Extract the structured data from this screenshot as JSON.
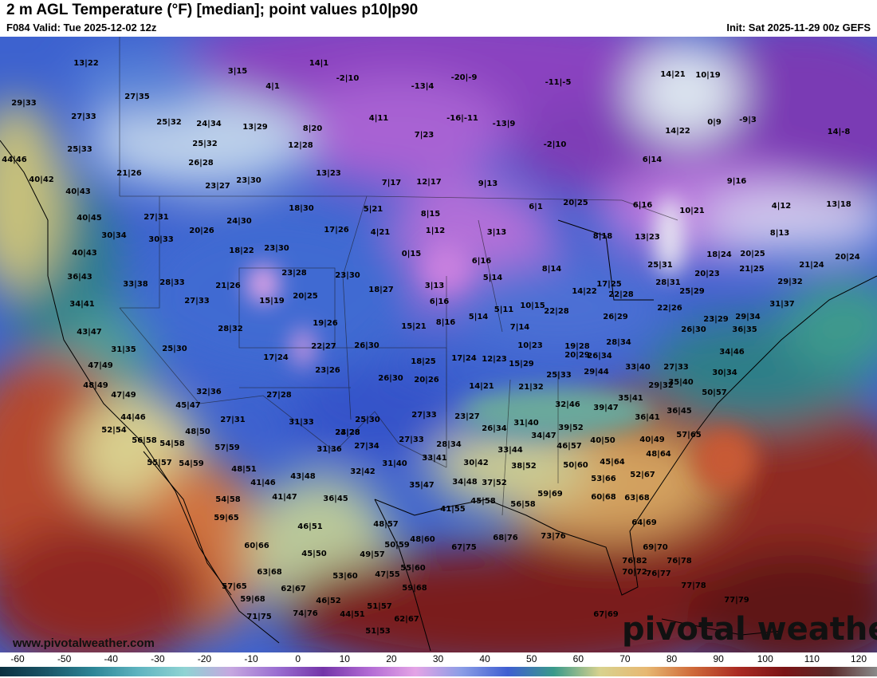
{
  "header": {
    "title": "2 m AGL Temperature (°F) [median]; point values p10|p90",
    "valid": "F084 Valid: Tue 2025-12-02 12z",
    "init": "Init: Sat 2025-11-29 00z GEFS"
  },
  "watermark": "www.pivotalweather.com",
  "brand": "pivotal weather",
  "colorbar": {
    "ticks": [
      "-60",
      "-50",
      "-40",
      "-30",
      "-20",
      "-10",
      "0",
      "10",
      "20",
      "30",
      "40",
      "50",
      "60",
      "70",
      "80",
      "90",
      "100",
      "110",
      "120"
    ],
    "colors": [
      "#0b3040",
      "#1a5567",
      "#2c8596",
      "#5fb4c0",
      "#8fd3d3",
      "#c6a7e0",
      "#9a6ed1",
      "#7434a8",
      "#b26bd4",
      "#e4a4e6",
      "#8b9de6",
      "#3f5ed1",
      "#3a9a8a",
      "#d8d28e",
      "#e7b872",
      "#cf6a3a",
      "#a92a22",
      "#7a1416",
      "#5a2a2a",
      "#8a8a8a"
    ]
  },
  "point_values": [
    "13|22",
    "3|15",
    "14|1",
    "-2|10",
    "4|1",
    "-13|4",
    "-20|-9",
    "-11|-5",
    "14|21",
    "10|19",
    "29|33",
    "27|35",
    "27|33",
    "25|32",
    "24|34",
    "13|29",
    "8|20",
    "4|11",
    "-16|-11",
    "-13|9",
    "0|9",
    "-9|3",
    "25|33",
    "25|32",
    "12|28",
    "7|23",
    "-2|10",
    "14|22",
    "14|-8",
    "44|46",
    "21|26",
    "26|28",
    "13|23",
    "6|14",
    "9|16",
    "40|42",
    "23|27",
    "23|30",
    "7|17",
    "12|17",
    "9|13",
    "40|43",
    "18|30",
    "5|21",
    "8|15",
    "6|1",
    "20|25",
    "6|16",
    "10|21",
    "4|12",
    "13|18",
    "40|45",
    "27|31",
    "24|30",
    "17|26",
    "4|21",
    "1|12",
    "3|13",
    "8|18",
    "13|23",
    "8|13",
    "30|34",
    "20|26",
    "30|33",
    "18|22",
    "23|30",
    "0|15",
    "6|16",
    "18|24",
    "20|25",
    "20|24",
    "40|43",
    "21|24",
    "36|43",
    "23|28",
    "23|30",
    "8|14",
    "25|31",
    "21|25",
    "33|38",
    "28|33",
    "21|26",
    "3|13",
    "5|14",
    "17|25",
    "28|31",
    "20|23",
    "29|32",
    "34|41",
    "27|33",
    "15|19",
    "20|25",
    "18|27",
    "6|16",
    "5|11",
    "10|15",
    "14|22",
    "22|28",
    "25|29",
    "22|26",
    "31|37",
    "43|47",
    "28|32",
    "19|26",
    "15|21",
    "8|16",
    "5|14",
    "7|14",
    "22|28",
    "26|29",
    "26|30",
    "23|29",
    "29|34",
    "31|35",
    "25|30",
    "22|27",
    "26|30",
    "10|23",
    "19|28",
    "28|34",
    "36|35",
    "47|49",
    "17|24",
    "18|25",
    "17|24",
    "12|23",
    "15|29",
    "20|29",
    "26|34",
    "34|46",
    "48|49",
    "23|26",
    "26|30",
    "20|26",
    "25|33",
    "29|44",
    "33|40",
    "27|33",
    "30|34",
    "47|49",
    "32|36",
    "27|28",
    "14|21",
    "21|32",
    "35|40",
    "44|46",
    "45|47",
    "27|31",
    "23|28",
    "32|46",
    "35|41",
    "29|32",
    "50|57",
    "52|54",
    "31|33",
    "25|30",
    "27|33",
    "23|27",
    "39|47",
    "36|45",
    "56|58",
    "54|58",
    "48|50",
    "24|28",
    "31|40",
    "26|34",
    "39|52",
    "36|41",
    "57|65",
    "55|57",
    "54|59",
    "57|59",
    "31|36",
    "27|34",
    "27|33",
    "28|34",
    "34|47",
    "40|49",
    "48|51",
    "43|48",
    "32|42",
    "31|40",
    "33|41",
    "33|44",
    "46|57",
    "40|50",
    "48|64",
    "54|58",
    "41|46",
    "41|47",
    "36|45",
    "35|47",
    "34|48",
    "30|42",
    "37|52",
    "38|52",
    "50|60",
    "45|64",
    "59|65",
    "46|51",
    "41|55",
    "45|58",
    "56|58",
    "59|69",
    "53|66",
    "52|67",
    "60|66",
    "48|57",
    "60|68",
    "63|68",
    "45|50",
    "49|57",
    "50|59",
    "48|60",
    "67|75",
    "68|76",
    "73|76",
    "64|69",
    "63|68",
    "53|60",
    "47|55",
    "55|60",
    "76|82",
    "69|70",
    "57|65",
    "62|67",
    "59|68",
    "70|72",
    "76|77",
    "76|78",
    "59|68",
    "46|52",
    "51|57",
    "77|78",
    "71|75",
    "74|76",
    "44|51",
    "62|67",
    "77|79",
    "51|53",
    "67|69"
  ]
}
